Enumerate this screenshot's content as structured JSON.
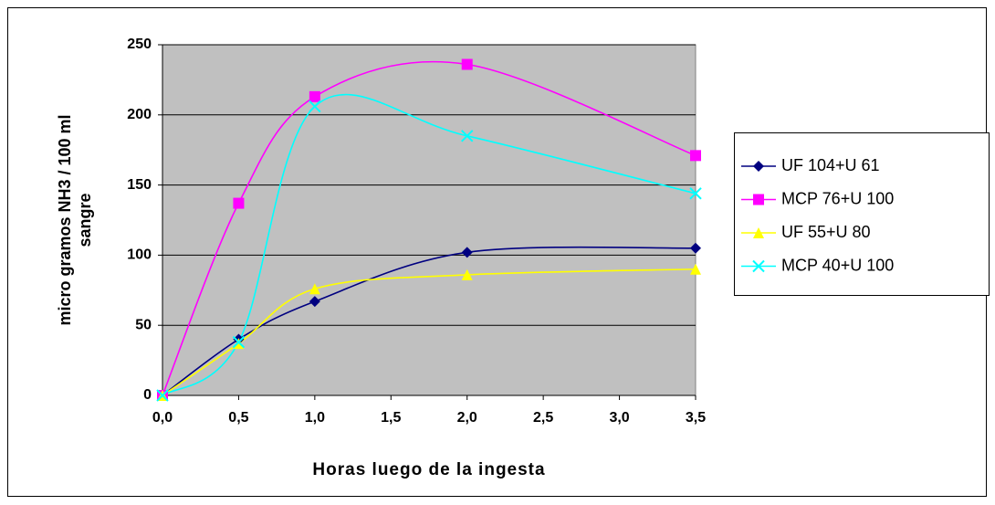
{
  "chart_data": {
    "type": "line",
    "xlabel": "Horas luego de la ingesta",
    "ylabel": [
      "micro gramos NH3 / 100 ml",
      "sangre"
    ],
    "x": [
      0,
      0.5,
      1,
      2,
      3.5
    ],
    "series": [
      {
        "name": "UF 104+U 61",
        "color": "#000080",
        "marker": "diamond",
        "values": [
          0,
          40,
          67,
          102,
          105
        ]
      },
      {
        "name": "MCP 76+U 100",
        "color": "#ff00ff",
        "marker": "square",
        "values": [
          0,
          137,
          213,
          236,
          171
        ]
      },
      {
        "name": "UF 55+U 80",
        "color": "#ffff00",
        "marker": "triangle",
        "values": [
          0,
          37,
          76,
          86,
          90
        ]
      },
      {
        "name": "MCP 40+U 100",
        "color": "#00ffff",
        "marker": "x",
        "values": [
          0,
          38,
          206,
          185,
          144
        ]
      }
    ],
    "xlim": [
      0,
      3.5
    ],
    "xticks": [
      {
        "value": 0,
        "label": "0,0"
      },
      {
        "value": 0.5,
        "label": "0,5"
      },
      {
        "value": 1,
        "label": "1,0"
      },
      {
        "value": 1.5,
        "label": "1,5"
      },
      {
        "value": 2,
        "label": "2,0"
      },
      {
        "value": 2.5,
        "label": "2,5"
      },
      {
        "value": 3,
        "label": "3,0"
      },
      {
        "value": 3.5,
        "label": "3,5"
      }
    ],
    "ylim": [
      0,
      250
    ],
    "yticks": [
      0,
      50,
      100,
      150,
      200,
      250
    ],
    "grid": true,
    "smooth": true,
    "legend": "right",
    "plot_background": "#c0c0c0"
  }
}
